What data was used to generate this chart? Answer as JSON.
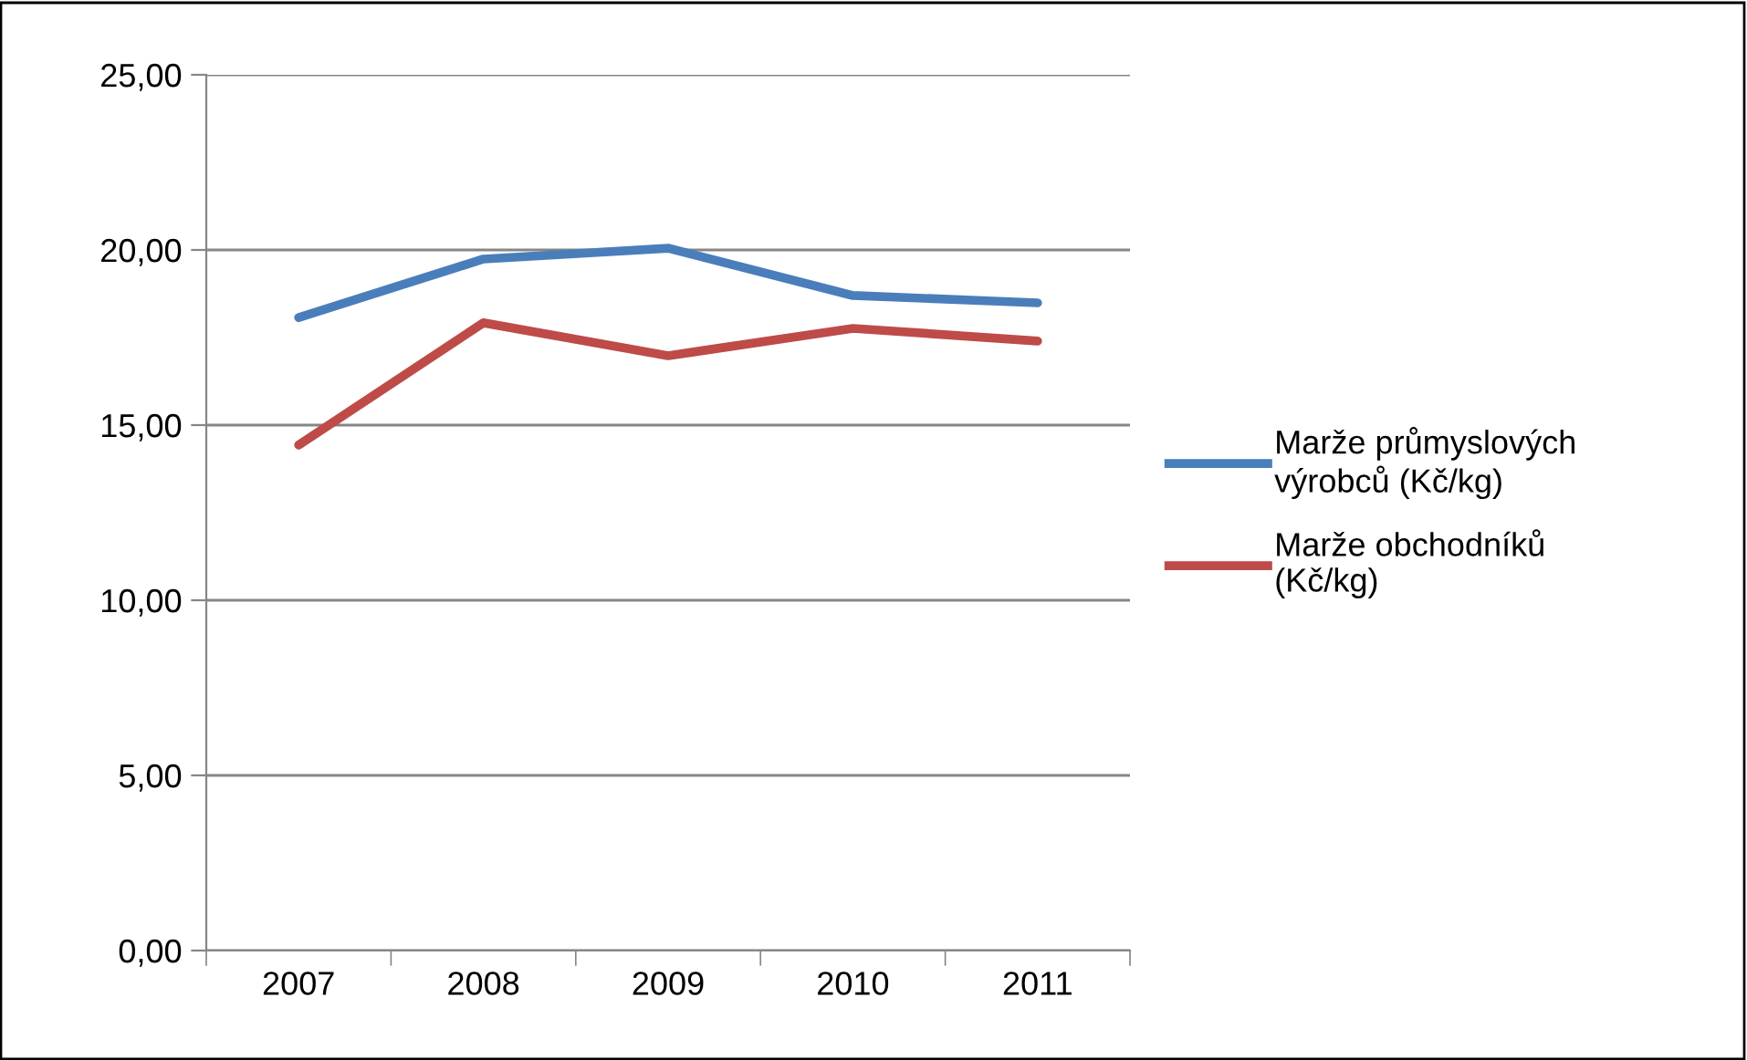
{
  "chart_data": {
    "type": "line",
    "categories": [
      "2007",
      "2008",
      "2009",
      "2010",
      "2011"
    ],
    "series": [
      {
        "name": "Marže průmyslových výrobců (Kč/kg)",
        "color": "#4a7ebb",
        "values": [
          18.07,
          19.74,
          20.05,
          18.7,
          18.49
        ]
      },
      {
        "name": "Marže obchodníků (Kč/kg)",
        "color": "#be4b48",
        "values": [
          14.43,
          17.92,
          16.98,
          17.76,
          17.4
        ]
      }
    ],
    "ylim": [
      0,
      25
    ],
    "yticks": [
      {
        "value": 0,
        "label": "0,00"
      },
      {
        "value": 5,
        "label": "5,00"
      },
      {
        "value": 10,
        "label": "10,00"
      },
      {
        "value": 15,
        "label": "15,00"
      },
      {
        "value": 20,
        "label": "20,00"
      },
      {
        "value": 25,
        "label": "25,00"
      }
    ],
    "grid": "y",
    "legend": "right",
    "marker": "none",
    "line_style": "solid"
  }
}
